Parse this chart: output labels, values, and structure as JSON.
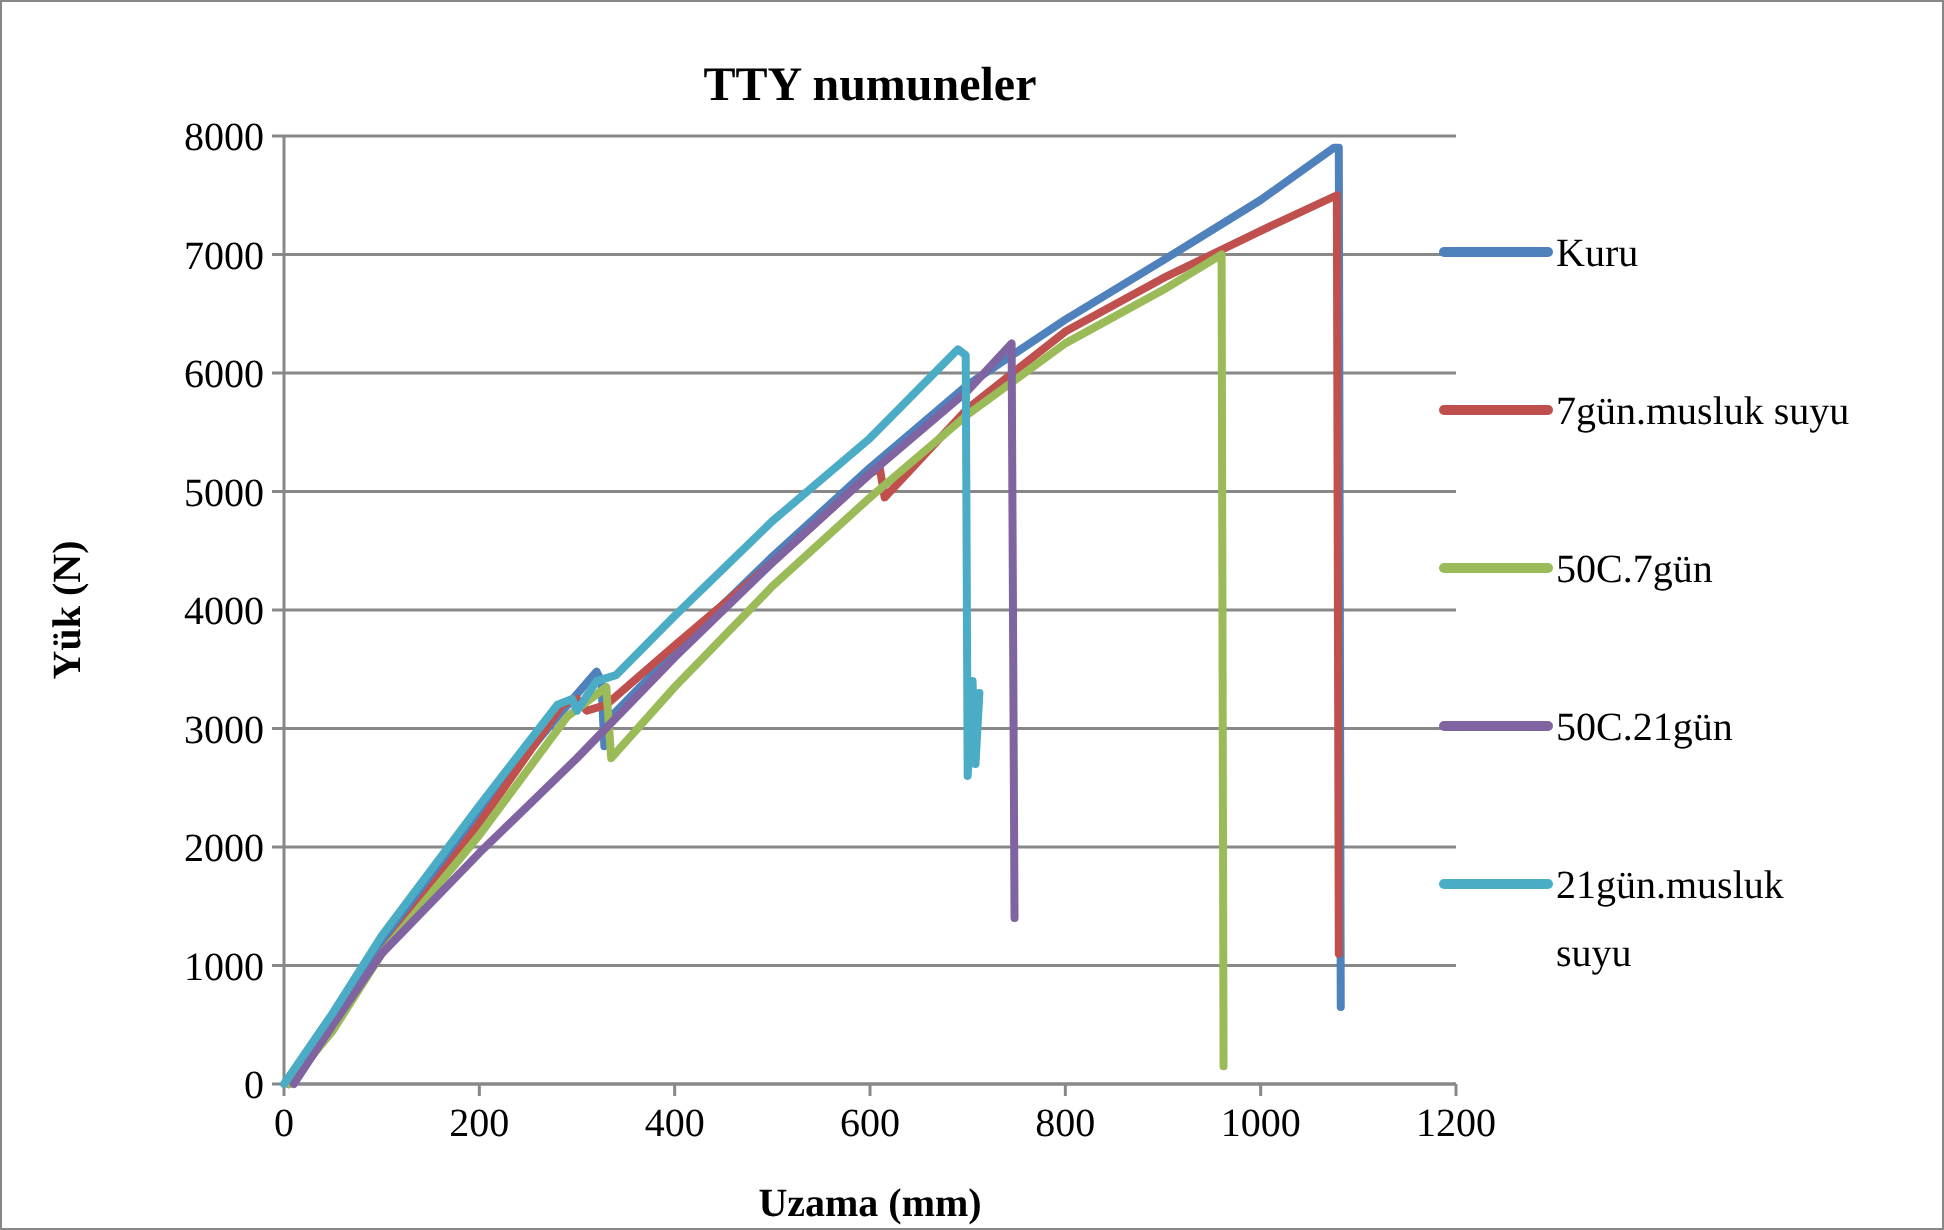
{
  "chart_data": {
    "type": "line",
    "title": "TTY numuneler",
    "xlabel": "Uzama (mm)",
    "ylabel": "Yük (N)",
    "xlim": [
      0,
      1200
    ],
    "ylim": [
      0,
      8000
    ],
    "xticks": [
      0,
      200,
      400,
      600,
      800,
      1000,
      1200
    ],
    "yticks": [
      0,
      1000,
      2000,
      3000,
      4000,
      5000,
      6000,
      7000,
      8000
    ],
    "grid": "y",
    "legend": "right",
    "marker": "none",
    "line_style": "solid",
    "series": [
      {
        "name": "Kuru",
        "color": "#4f81bd",
        "x": [
          5,
          50,
          100,
          200,
          280,
          320,
          325,
          328,
          335,
          400,
          500,
          600,
          700,
          800,
          900,
          1000,
          1075,
          1080,
          1082
        ],
        "values": [
          0,
          500,
          1150,
          2300,
          3100,
          3480,
          3400,
          2850,
          3100,
          3650,
          4450,
          5200,
          5900,
          6450,
          6950,
          7460,
          7900,
          7900,
          650
        ]
      },
      {
        "name": "7gün.musluk suyu",
        "color": "#c0504d",
        "x": [
          5,
          50,
          100,
          200,
          285,
          300,
          310,
          330,
          400,
          500,
          600,
          610,
          615,
          700,
          800,
          900,
          1000,
          1078,
          1080
        ],
        "values": [
          0,
          480,
          1100,
          2200,
          3200,
          3250,
          3150,
          3200,
          3700,
          4400,
          5150,
          5200,
          4950,
          5700,
          6350,
          6800,
          7200,
          7500,
          1100
        ]
      },
      {
        "name": "50C.7gün",
        "color": "#9bbb59",
        "x": [
          5,
          50,
          100,
          200,
          290,
          330,
          335,
          400,
          500,
          600,
          700,
          800,
          900,
          960,
          962
        ],
        "values": [
          0,
          450,
          1100,
          2100,
          3100,
          3350,
          2750,
          3350,
          4200,
          4950,
          5650,
          6250,
          6700,
          7000,
          150
        ]
      },
      {
        "name": "50C.21gün",
        "color": "#8064a2",
        "x": [
          10,
          50,
          100,
          200,
          300,
          400,
          500,
          600,
          700,
          745,
          748
        ],
        "values": [
          0,
          500,
          1100,
          1950,
          2750,
          3600,
          4400,
          5150,
          5850,
          6250,
          1400
        ]
      },
      {
        "name": "21gün.musluk suyu",
        "color": "#4bacc6",
        "x": [
          0,
          50,
          100,
          200,
          280,
          295,
          300,
          320,
          340,
          400,
          500,
          600,
          690,
          698,
          700,
          705,
          708,
          712
        ],
        "values": [
          0,
          600,
          1250,
          2350,
          3200,
          3250,
          3150,
          3400,
          3450,
          3950,
          4750,
          5450,
          6200,
          6150,
          2600,
          3400,
          2700,
          3300
        ]
      }
    ]
  }
}
